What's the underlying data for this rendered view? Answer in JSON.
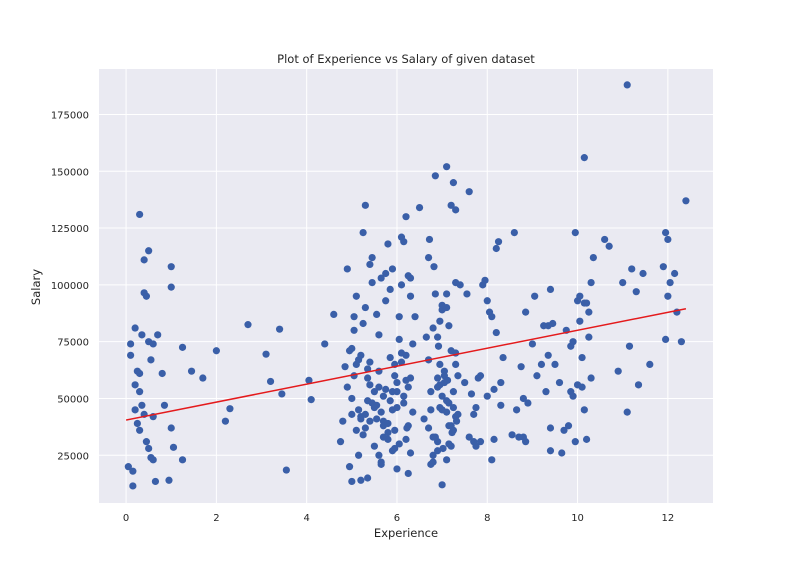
{
  "chart_data": {
    "type": "scatter",
    "title": "Plot of Experience vs Salary of given dataset",
    "xlabel": "Experience",
    "ylabel": "Salary",
    "xlim": [
      -0.6,
      13.0
    ],
    "ylim": [
      4000,
      195000
    ],
    "xticks": [
      0,
      2,
      4,
      6,
      8,
      10,
      12
    ],
    "xtick_labels": [
      "0",
      "2",
      "4",
      "6",
      "8",
      "10",
      "12"
    ],
    "yticks": [
      25000,
      50000,
      75000,
      100000,
      125000,
      150000,
      175000
    ],
    "ytick_labels": [
      "25000",
      "50000",
      "75000",
      "100000",
      "125000",
      "150000",
      "175000"
    ],
    "grid": true,
    "background": "#eaeaf2",
    "point_color": "#3a5fa8",
    "line_color": "#e41a1c",
    "regression_line": {
      "x": [
        0.0,
        12.4
      ],
      "y": [
        40500,
        89500
      ]
    },
    "points": {
      "x": [
        0.05,
        0.1,
        0.1,
        0.15,
        0.15,
        0.2,
        0.2,
        0.2,
        0.25,
        0.25,
        0.3,
        0.3,
        0.3,
        0.3,
        0.35,
        0.35,
        0.4,
        0.4,
        0.4,
        0.45,
        0.45,
        0.5,
        0.5,
        0.5,
        0.55,
        0.55,
        0.6,
        0.6,
        0.6,
        0.65,
        0.7,
        0.8,
        0.85,
        0.95,
        1.0,
        1.0,
        1.0,
        1.05,
        1.25,
        1.25,
        1.45,
        1.7,
        2.0,
        2.2,
        2.3,
        2.7,
        3.1,
        3.2,
        3.4,
        3.45,
        3.55,
        4.05,
        4.1,
        4.4,
        4.6,
        4.75,
        4.8,
        4.85,
        4.9,
        4.95,
        5.0,
        5.0,
        5.05,
        5.1,
        5.15,
        5.2,
        5.25,
        5.3,
        5.35,
        5.4,
        5.45,
        5.5,
        5.55,
        5.6,
        5.65,
        5.7,
        5.75,
        5.8,
        5.85,
        5.9,
        5.95,
        6.0,
        6.05,
        6.1,
        6.15,
        6.2,
        6.25,
        6.3,
        6.35,
        6.4,
        6.5,
        4.95,
        5.05,
        5.15,
        5.25,
        5.35,
        5.45,
        5.55,
        5.65,
        5.75,
        5.85,
        5.95,
        6.05,
        6.15,
        6.25,
        6.35,
        4.9,
        5.0,
        5.1,
        5.2,
        5.3,
        5.4,
        5.5,
        5.6,
        5.7,
        5.8,
        5.9,
        6.0,
        6.1,
        6.2,
        6.3,
        5.05,
        5.15,
        5.25,
        5.35,
        5.45,
        5.55,
        5.65,
        5.75,
        5.85,
        5.95,
        6.05,
        6.15,
        6.25,
        5.0,
        5.2,
        5.4,
        5.6,
        5.8,
        6.0,
        6.2,
        5.1,
        5.3,
        5.5,
        5.7,
        5.9,
        6.1,
        6.3,
        5.3,
        5.6,
        5.9,
        6.2,
        5.2,
        5.5,
        5.8,
        6.1,
        6.3,
        5.4,
        5.7,
        6.0,
        6.25,
        5.35,
        5.65,
        5.95,
        6.22,
        6.6,
        6.7,
        6.75,
        6.8,
        6.85,
        6.9,
        6.95,
        7.0,
        7.05,
        7.1,
        7.15,
        7.2,
        7.25,
        7.3,
        7.35,
        7.4,
        6.7,
        6.8,
        6.9,
        7.0,
        7.1,
        7.2,
        7.3,
        6.65,
        6.75,
        6.85,
        6.95,
        7.05,
        7.15,
        7.25,
        7.35,
        6.7,
        6.8,
        6.9,
        7.0,
        7.1,
        7.2,
        7.3,
        6.72,
        6.82,
        6.92,
        7.02,
        7.12,
        7.22,
        7.32,
        6.8,
        6.9,
        7.0,
        7.1,
        7.2,
        7.3,
        6.75,
        6.85,
        6.95,
        7.05,
        7.15,
        7.25,
        6.9,
        7.1,
        7.25,
        7.1,
        7.0,
        7.3,
        6.95,
        7.15,
        7.5,
        7.6,
        7.65,
        7.7,
        7.75,
        7.8,
        7.85,
        7.9,
        7.95,
        8.0,
        8.05,
        8.1,
        8.15,
        8.2,
        8.25,
        8.3,
        8.35,
        7.55,
        7.7,
        7.85,
        8.1,
        8.2,
        8.3,
        7.6,
        7.75,
        8.0,
        8.15,
        8.55,
        8.6,
        8.7,
        8.75,
        8.8,
        8.85,
        8.9,
        9.0,
        9.1,
        9.2,
        9.3,
        9.35,
        9.4,
        9.45,
        8.65,
        8.8,
        9.05,
        9.35,
        9.4,
        8.85,
        9.25,
        9.4,
        9.5,
        9.6,
        9.65,
        9.7,
        9.75,
        9.8,
        9.85,
        9.9,
        9.95,
        10.0,
        10.05,
        10.1,
        10.15,
        10.2,
        10.25,
        10.3,
        10.35,
        9.85,
        9.95,
        10.05,
        10.15,
        10.25,
        9.9,
        10.0,
        10.1,
        10.2,
        10.3,
        10.6,
        10.7,
        10.9,
        11.0,
        11.1,
        11.15,
        11.2,
        11.3,
        11.35,
        11.45,
        11.6,
        11.9,
        11.95,
        12.0,
        12.0,
        12.05,
        12.15,
        12.2,
        12.3,
        12.4,
        11.95,
        11.1,
        10.15
      ],
      "y": [
        20000,
        74000,
        69000,
        11500,
        18000,
        81000,
        56000,
        45000,
        39000,
        62000,
        36000,
        61000,
        53000,
        131000,
        78000,
        47000,
        111000,
        96500,
        43000,
        95000,
        31000,
        115000,
        75000,
        28000,
        67000,
        24000,
        23000,
        74000,
        42000,
        13500,
        78000,
        61000,
        47000,
        14000,
        108000,
        99000,
        37000,
        28500,
        72500,
        23000,
        62000,
        59000,
        71000,
        40000,
        45500,
        82500,
        69500,
        57500,
        80500,
        52000,
        18500,
        58000,
        49500,
        74000,
        87000,
        31000,
        40000,
        64000,
        107000,
        20000,
        13500,
        50000,
        86000,
        95000,
        45000,
        41000,
        123000,
        135000,
        63000,
        109000,
        101000,
        53000,
        87000,
        55000,
        44000,
        38000,
        93000,
        35000,
        49000,
        27000,
        65000,
        57000,
        76000,
        100000,
        119000,
        130000,
        17000,
        95000,
        74000,
        86000,
        134000,
        71000,
        80000,
        25000,
        34000,
        59000,
        48000,
        41000,
        22000,
        105000,
        68000,
        60000,
        30000,
        51000,
        38000,
        44000,
        55000,
        72000,
        36000,
        42000,
        90000,
        66000,
        29000,
        78000,
        40000,
        32000,
        107000,
        19000,
        70000,
        32000,
        26000,
        60000,
        67000,
        83000,
        49000,
        112000,
        47000,
        103000,
        54000,
        98000,
        36000,
        86000,
        48000,
        55000,
        43000,
        69000,
        56000,
        62000,
        39000,
        53000,
        58000,
        65000,
        37000,
        47000,
        51000,
        45000,
        66000,
        59000,
        43000,
        25000,
        53000,
        69000,
        14000,
        46000,
        118000,
        121000,
        103000,
        40000,
        33000,
        46000,
        104000,
        15000,
        21000,
        28000,
        37000,
        41000,
        67000,
        45000,
        33000,
        96000,
        77000,
        56000,
        45000,
        62000,
        152000,
        38000,
        135000,
        53000,
        101000,
        60000,
        100000,
        112000,
        81000,
        55000,
        89000,
        90000,
        71000,
        42000,
        77000,
        21000,
        148000,
        84000,
        57000,
        48000,
        46000,
        43000,
        37000,
        22000,
        31000,
        51000,
        44000,
        38000,
        65000,
        120000,
        108000,
        73000,
        28000,
        58000,
        35000,
        40000,
        25000,
        59000,
        12000,
        49000,
        29000,
        70000,
        53000,
        33000,
        46000,
        60000,
        82000,
        36000,
        27000,
        96000,
        145000,
        23000,
        91000,
        133000,
        65000,
        30000,
        57000,
        141000,
        52000,
        31000,
        46000,
        59000,
        60000,
        100000,
        102000,
        93000,
        88000,
        23000,
        32000,
        116000,
        119000,
        47000,
        68000,
        96000,
        43000,
        31000,
        86000,
        79000,
        57000,
        33000,
        29000,
        51000,
        54000,
        34000,
        123000,
        33000,
        64000,
        50000,
        88000,
        48000,
        74000,
        60000,
        65000,
        53000,
        69000,
        98000,
        83000,
        45000,
        33000,
        95000,
        82000,
        27000,
        31000,
        82000,
        37000,
        65000,
        57000,
        26000,
        36000,
        80000,
        38000,
        73000,
        51000,
        31000,
        93000,
        84000,
        55000,
        45000,
        32000,
        88000,
        101000,
        112000,
        53000,
        123000,
        95000,
        92000,
        77000,
        75000,
        56000,
        68000,
        92000,
        59000,
        120000,
        117000,
        62000,
        101000,
        44000,
        73000,
        107000,
        97000,
        56000,
        105000,
        65000,
        108000,
        123000,
        95000,
        120000,
        101000,
        105000,
        88000,
        75000,
        137000,
        76000,
        188000,
        156000
      ]
    }
  }
}
